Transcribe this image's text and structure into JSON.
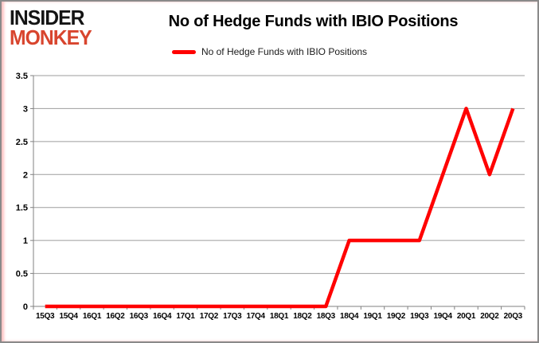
{
  "logo": {
    "line1": "INSIDER",
    "line2": "MONKEY",
    "line2_color": "#d8452e"
  },
  "header": {
    "title": "No of Hedge Funds with IBIO Positions"
  },
  "legend": {
    "label": "No of Hedge Funds with IBIO Positions",
    "swatch_color": "#ff0000"
  },
  "colors": {
    "grid": "#9e9e9e",
    "axis": "#808080",
    "series_line": "#ff0000",
    "text": "#000000",
    "card_border": "#8a8a8a",
    "bottom_bar": "#f20000"
  },
  "chart_data": {
    "type": "line",
    "title": "No of Hedge Funds with IBIO Positions",
    "categories": [
      "15Q3",
      "15Q4",
      "16Q1",
      "16Q2",
      "16Q3",
      "16Q4",
      "17Q1",
      "17Q2",
      "17Q3",
      "17Q4",
      "18Q1",
      "18Q2",
      "18Q3",
      "18Q4",
      "19Q1",
      "19Q2",
      "19Q3",
      "19Q4",
      "20Q1",
      "20Q2",
      "20Q3"
    ],
    "series": [
      {
        "name": "No of Hedge Funds with IBIO Positions",
        "color": "#ff0000",
        "values": [
          0,
          0,
          0,
          0,
          0,
          0,
          0,
          0,
          0,
          0,
          0,
          0,
          0,
          1,
          1,
          1,
          1,
          2,
          3,
          2,
          3
        ]
      }
    ],
    "ylim": [
      0,
      3.5
    ],
    "yticks": [
      0,
      0.5,
      1,
      1.5,
      2,
      2.5,
      3,
      3.5
    ],
    "xlabel": "",
    "ylabel": "",
    "grid": "horizontal",
    "legend_position": "top-center"
  }
}
